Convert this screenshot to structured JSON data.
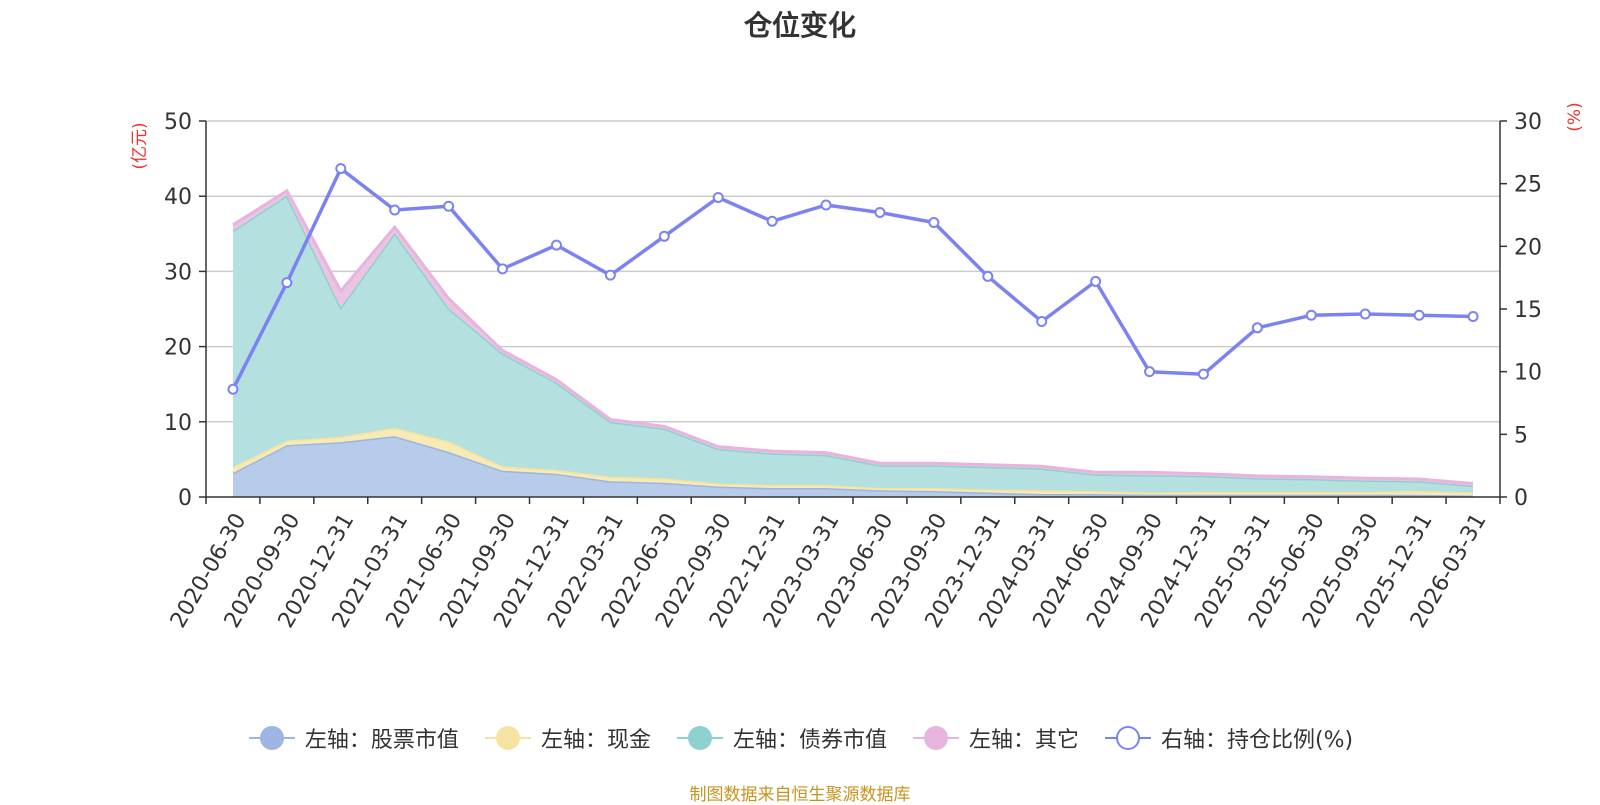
{
  "chart_data": {
    "type": "area",
    "title": "仓位变化",
    "left_unit": "(亿元)",
    "right_unit": "(%)",
    "left_ylim": [
      0,
      50
    ],
    "left_ticks": [
      "0",
      "10",
      "20",
      "30",
      "40",
      "50"
    ],
    "right_ylim": [
      0,
      30
    ],
    "right_ticks": [
      "0",
      "5",
      "10",
      "15",
      "20",
      "25",
      "30"
    ],
    "categories": [
      "2020-06-30",
      "2020-09-30",
      "2020-12-31",
      "2021-03-31",
      "2021-06-30",
      "2021-09-30",
      "2021-12-31",
      "2022-03-31",
      "2022-06-30",
      "2022-09-30",
      "2022-12-31",
      "2023-03-31",
      "2023-06-30",
      "2023-09-30",
      "2023-12-31",
      "2024-03-31",
      "2024-06-30",
      "2024-09-30",
      "2024-12-31",
      "2025-03-31",
      "2025-06-30",
      "2025-09-30",
      "2025-12-31",
      "2026-03-31"
    ],
    "stacked_series": [
      {
        "name": "左轴：股票市值",
        "color": "#9db5e0",
        "fill": "#b7cbea",
        "values": [
          3.2,
          6.9,
          7.3,
          8.1,
          6.0,
          3.5,
          3.1,
          2.1,
          1.9,
          1.4,
          1.2,
          1.2,
          0.9,
          0.8,
          0.6,
          0.4,
          0.4,
          0.3,
          0.3,
          0.3,
          0.3,
          0.3,
          0.3,
          0.2
        ]
      },
      {
        "name": "左轴：现金",
        "color": "#f6e3a1",
        "fill": "#f8eab4",
        "values": [
          0.8,
          0.6,
          0.7,
          1.1,
          1.4,
          0.6,
          0.5,
          0.6,
          0.6,
          0.4,
          0.4,
          0.4,
          0.3,
          0.4,
          0.4,
          0.5,
          0.4,
          0.3,
          0.4,
          0.4,
          0.4,
          0.4,
          0.5,
          0.4
        ]
      },
      {
        "name": "左轴：债券市值",
        "color": "#8fd0d0",
        "fill": "#b4e0e0",
        "values": [
          31.4,
          32.6,
          17.2,
          25.9,
          17.7,
          15.0,
          11.6,
          7.3,
          6.6,
          4.6,
          4.2,
          4.0,
          3.0,
          3.0,
          3.0,
          2.9,
          2.2,
          2.3,
          2.1,
          1.8,
          1.7,
          1.5,
          1.3,
          0.9
        ]
      },
      {
        "name": "左轴：其它",
        "color": "#e6b4dc",
        "fill": "#ebc4e4",
        "values": [
          0.8,
          0.6,
          2.2,
          0.8,
          1.3,
          0.4,
          0.4,
          0.3,
          0.3,
          0.3,
          0.3,
          0.3,
          0.3,
          0.3,
          0.3,
          0.3,
          0.3,
          0.4,
          0.3,
          0.3,
          0.3,
          0.3,
          0.3,
          0.3
        ]
      }
    ],
    "line_series": {
      "name": "右轴：持仓比例(%)",
      "color": "#7b83f3",
      "values": [
        8.6,
        17.1,
        26.2,
        22.9,
        23.2,
        18.2,
        20.1,
        17.7,
        20.8,
        23.9,
        22.0,
        23.3,
        22.7,
        21.9,
        17.6,
        14.0,
        17.2,
        10.0,
        9.8,
        13.5,
        14.5,
        14.6,
        14.5,
        14.4
      ]
    },
    "legend_position": "bottom",
    "grid": true
  },
  "footer": "制图数据来自恒生聚源数据库"
}
